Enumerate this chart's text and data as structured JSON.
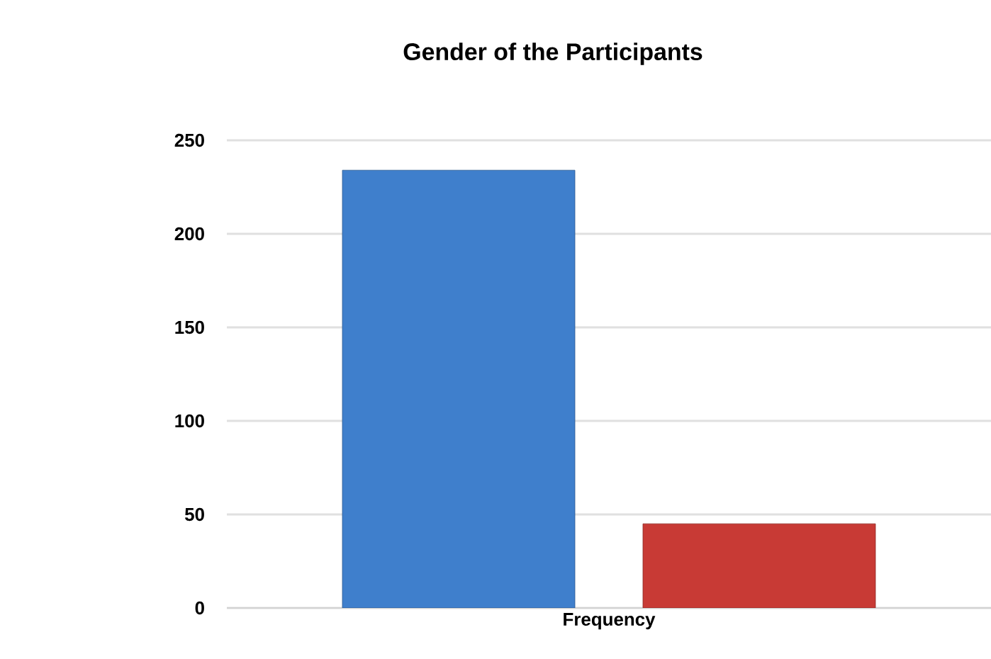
{
  "chart_data": {
    "type": "bar",
    "title": "Gender of the Participants",
    "categories": [
      "Frequency"
    ],
    "series": [
      {
        "color": "#3f7fcc",
        "values": [
          234
        ]
      },
      {
        "color": "#c83a35",
        "values": [
          45
        ]
      }
    ],
    "ylim": [
      0,
      250
    ],
    "yticks": [
      0,
      50,
      100,
      150,
      200,
      250
    ],
    "grid": "y"
  }
}
